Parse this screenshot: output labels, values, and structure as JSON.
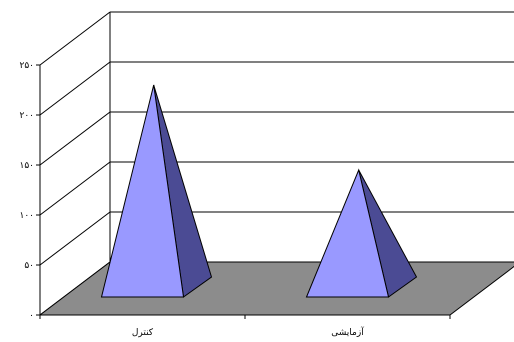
{
  "chart_data": {
    "type": "bar",
    "bar_shape": "pyramid-3d",
    "categories": [
      "کنترل",
      "آزمایشی"
    ],
    "values": [
      210,
      125
    ],
    "ylim": [
      0,
      250
    ],
    "yticks": [
      0,
      50,
      100,
      150,
      200,
      250
    ],
    "ytick_labels": [
      "۰",
      "۵۰",
      "۱۰۰",
      "۱۵۰",
      "۲۰۰",
      "۲۵۰"
    ],
    "title": "",
    "xlabel": "",
    "ylabel": "",
    "grid": true,
    "legend": "none",
    "colors": {
      "pyramid_front": "#9999ff",
      "pyramid_side": "#4b4b94",
      "floor": "#8c8c8c",
      "gridline": "#000000"
    }
  }
}
